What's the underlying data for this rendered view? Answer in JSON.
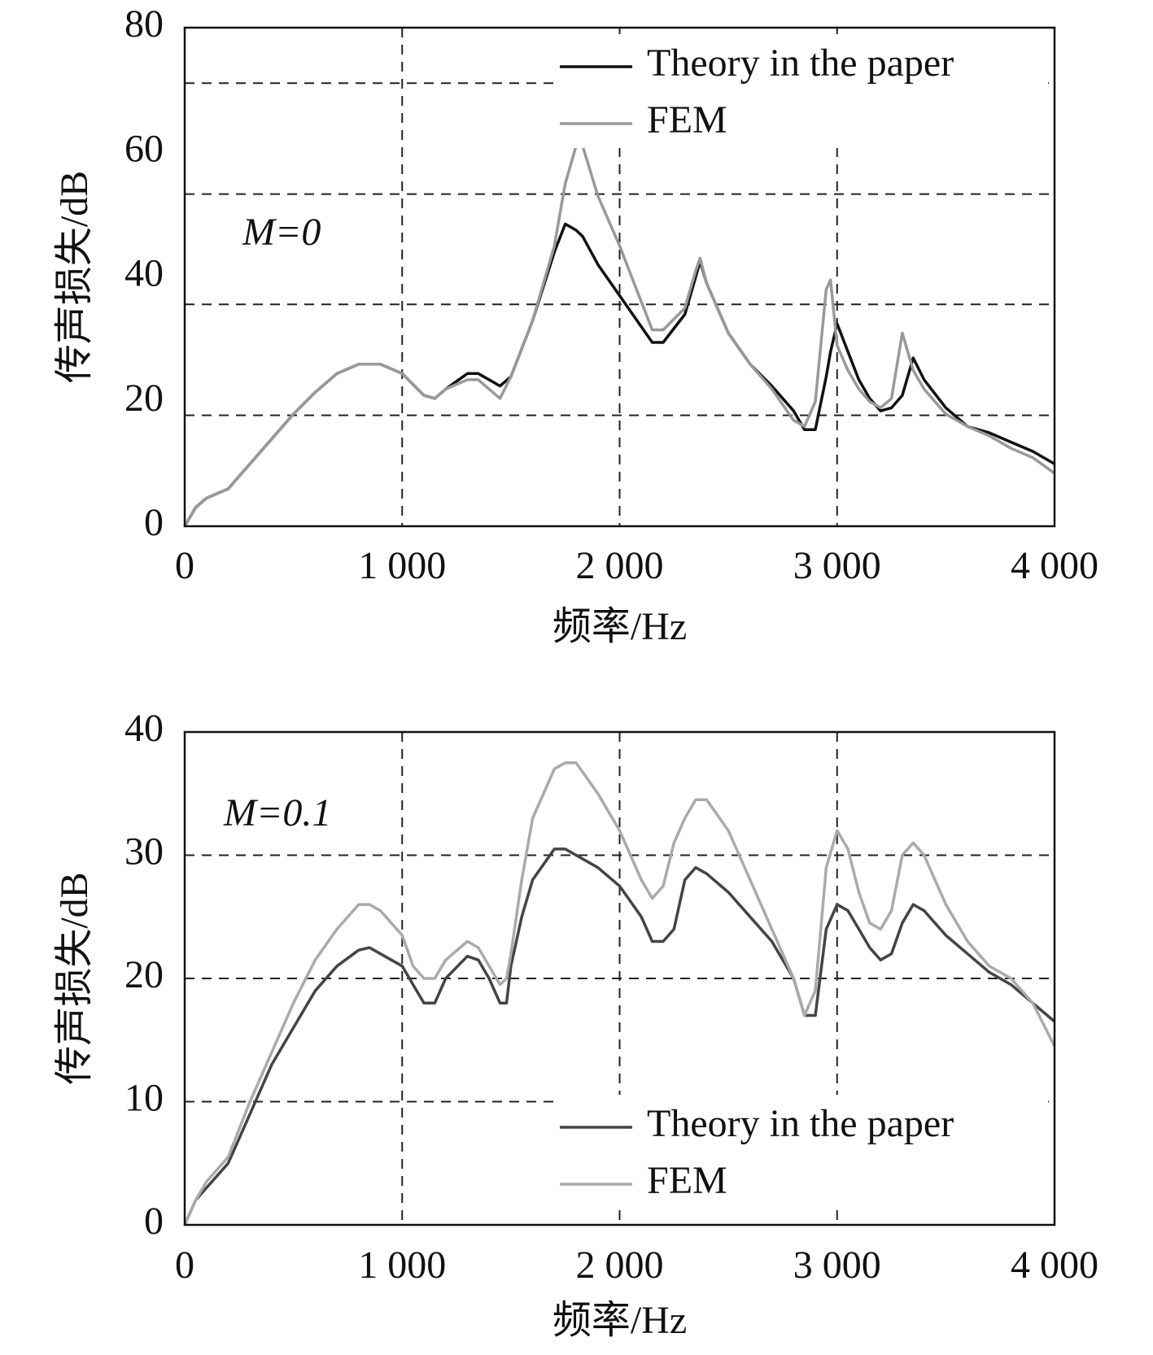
{
  "chart_data": [
    {
      "type": "line",
      "annotation": "M=0",
      "xlabel": "频率/Hz",
      "ylabel": "传声损失/dB",
      "legend": "upper right",
      "xlim": [
        0,
        4000
      ],
      "ylim": [
        0,
        80
      ],
      "xticks": [
        0,
        {
          "value": 1000,
          "label": "1 000"
        },
        {
          "value": 2000,
          "label": "2 000"
        },
        {
          "value": 3000,
          "label": "3 000"
        },
        {
          "value": 4000,
          "label": "4 000"
        }
      ],
      "yticks": [
        0,
        20,
        40,
        60,
        80
      ],
      "ygrid": [
        17.8,
        35.6,
        53.3,
        71.1
      ],
      "x": [
        0,
        50,
        100,
        200,
        300,
        400,
        500,
        600,
        700,
        800,
        900,
        1000,
        1100,
        1150,
        1200,
        1300,
        1350,
        1400,
        1450,
        1500,
        1600,
        1700,
        1750,
        1800,
        1830,
        1900,
        2000,
        2100,
        2150,
        2200,
        2300,
        2350,
        2370,
        2400,
        2500,
        2600,
        2700,
        2800,
        2850,
        2900,
        2950,
        2970,
        3000,
        3050,
        3100,
        3150,
        3200,
        3250,
        3300,
        3350,
        3400,
        3500,
        3600,
        3700,
        3800,
        3900,
        4000
      ],
      "series": [
        {
          "name": "Theory in the paper",
          "color": "#111111",
          "values": [
            0,
            3,
            4.5,
            6,
            10,
            14,
            18,
            21.5,
            24.5,
            26,
            26,
            24.5,
            21,
            20.5,
            22,
            24.5,
            24.5,
            23.5,
            22.5,
            24,
            33,
            44,
            48.5,
            47.5,
            46.5,
            42,
            37,
            32,
            29.5,
            29.5,
            34,
            40,
            42.5,
            39,
            31,
            26,
            22.5,
            18.5,
            15.5,
            15.5,
            24,
            28,
            32.5,
            28,
            23.5,
            20.5,
            18.5,
            19,
            21,
            27,
            23.5,
            19,
            16,
            15,
            13.5,
            12,
            10
          ]
        },
        {
          "name": "FEM",
          "color": "#999999",
          "values": [
            0,
            3,
            4.5,
            6,
            10,
            14,
            18,
            21.5,
            24.5,
            26,
            26,
            24.5,
            21,
            20.5,
            22,
            23.5,
            23.5,
            22,
            20.5,
            24,
            33,
            45,
            55,
            61,
            61,
            53,
            45,
            36,
            31.5,
            31.5,
            35,
            41,
            43,
            39,
            31,
            26,
            22,
            17,
            16,
            20,
            38,
            39.5,
            29,
            25,
            22,
            20,
            19,
            20.5,
            31,
            25,
            22,
            18,
            16,
            14.5,
            12.5,
            11,
            8.5
          ]
        }
      ]
    },
    {
      "type": "line",
      "annotation": "M=0.1",
      "xlabel": "频率/Hz",
      "ylabel": "传声损失/dB",
      "legend": "lower right",
      "xlim": [
        0,
        4000
      ],
      "ylim": [
        0,
        40
      ],
      "xticks": [
        0,
        {
          "value": 1000,
          "label": "1 000"
        },
        {
          "value": 2000,
          "label": "2 000"
        },
        {
          "value": 3000,
          "label": "3 000"
        },
        {
          "value": 4000,
          "label": "4 000"
        }
      ],
      "yticks": [
        0,
        10,
        20,
        30,
        40
      ],
      "ygrid": [
        10,
        20,
        30
      ],
      "x": [
        0,
        50,
        100,
        200,
        300,
        400,
        500,
        600,
        700,
        800,
        850,
        900,
        1000,
        1050,
        1100,
        1150,
        1200,
        1300,
        1350,
        1400,
        1450,
        1480,
        1500,
        1550,
        1600,
        1700,
        1750,
        1800,
        1900,
        2000,
        2100,
        2150,
        2200,
        2250,
        2300,
        2350,
        2400,
        2500,
        2600,
        2700,
        2800,
        2850,
        2900,
        2950,
        3000,
        3050,
        3100,
        3150,
        3200,
        3250,
        3300,
        3350,
        3400,
        3500,
        3600,
        3700,
        3800,
        3900,
        4000
      ],
      "series": [
        {
          "name": "Theory in the paper",
          "color": "#444444",
          "values": [
            0,
            2,
            3,
            5,
            9,
            13,
            16,
            19,
            21,
            22.3,
            22.5,
            22,
            21,
            19.5,
            18,
            18,
            20,
            21.8,
            21.5,
            20,
            18,
            18,
            21,
            25,
            28,
            30.5,
            30.5,
            30,
            29,
            27.5,
            25,
            23,
            23,
            24,
            28,
            29,
            28.5,
            27,
            25,
            23,
            20,
            17,
            17,
            24,
            26,
            25.5,
            24,
            22.5,
            21.5,
            22,
            24.5,
            26,
            25.5,
            23.5,
            22,
            20.5,
            19.5,
            18,
            16.5
          ]
        },
        {
          "name": "FEM",
          "color": "#aaaaaa",
          "values": [
            0,
            2,
            3.5,
            5.5,
            10,
            14,
            18,
            21.5,
            24,
            26,
            26,
            25.5,
            23.5,
            21,
            20,
            20,
            21.5,
            23,
            22.5,
            21,
            19.5,
            20,
            22,
            28,
            33,
            37,
            37.5,
            37.5,
            35,
            32,
            28,
            26.5,
            27.5,
            31,
            33,
            34.5,
            34.5,
            32,
            28,
            24,
            20,
            17,
            19,
            29,
            32,
            30.5,
            27,
            24.5,
            24,
            25.5,
            30,
            31,
            30,
            26,
            23,
            21,
            20,
            18,
            14.5
          ]
        }
      ]
    }
  ]
}
